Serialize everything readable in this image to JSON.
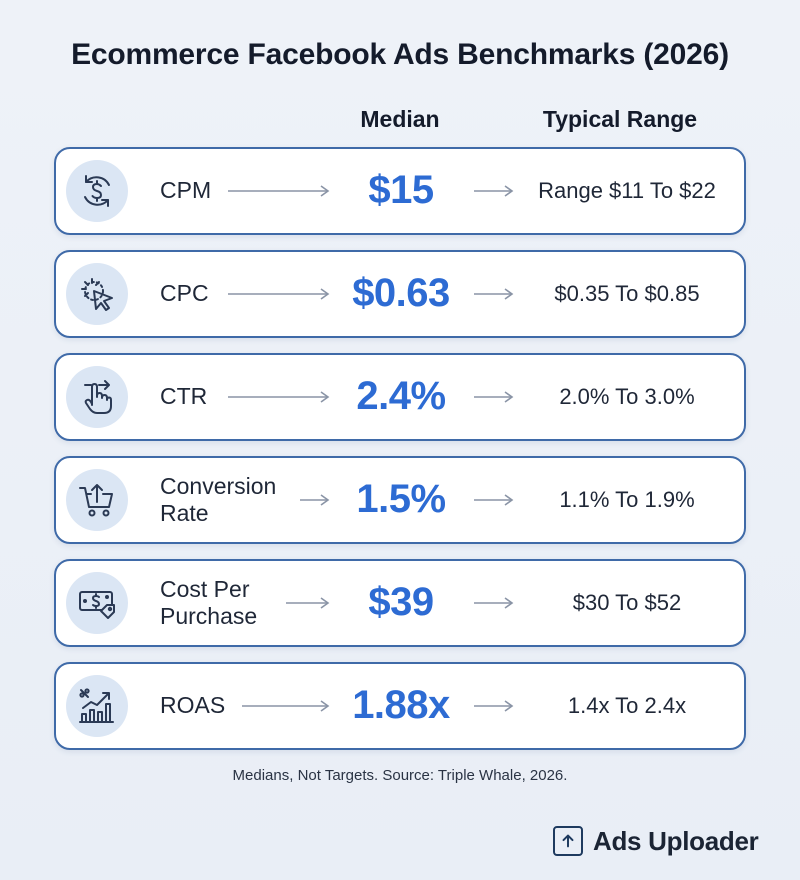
{
  "title": "Ecommerce Facebook Ads Benchmarks (2026)",
  "columns": {
    "median": "Median",
    "range": "Typical Range"
  },
  "rows": [
    {
      "icon": "dollar-cycle-icon",
      "label": "CPM",
      "median": "$15",
      "range": "Range $11 To $22"
    },
    {
      "icon": "cursor-click-icon",
      "label": "CPC",
      "median": "$0.63",
      "range": "$0.35 To $0.85"
    },
    {
      "icon": "hand-tap-icon",
      "label": "CTR",
      "median": "2.4%",
      "range": "2.0% To 3.0%"
    },
    {
      "icon": "cart-upload-icon",
      "label": "Conversion Rate",
      "median": "1.5%",
      "range": "1.1% To 1.9%"
    },
    {
      "icon": "money-tag-icon",
      "label": "Cost Per Purchase",
      "median": "$39",
      "range": "$30 To $52"
    },
    {
      "icon": "growth-chart-icon",
      "label": "ROAS",
      "median": "1.88x",
      "range": "1.4x To 2.4x"
    }
  ],
  "source": "Medians, Not Targets. Source: Triple Whale, 2026.",
  "brand": {
    "name": "Ads Uploader",
    "icon": "upload-box-icon"
  },
  "colors": {
    "accent": "#2d6bd3",
    "border": "#3f6aa8",
    "icon_bg": "#dbe6f4"
  }
}
